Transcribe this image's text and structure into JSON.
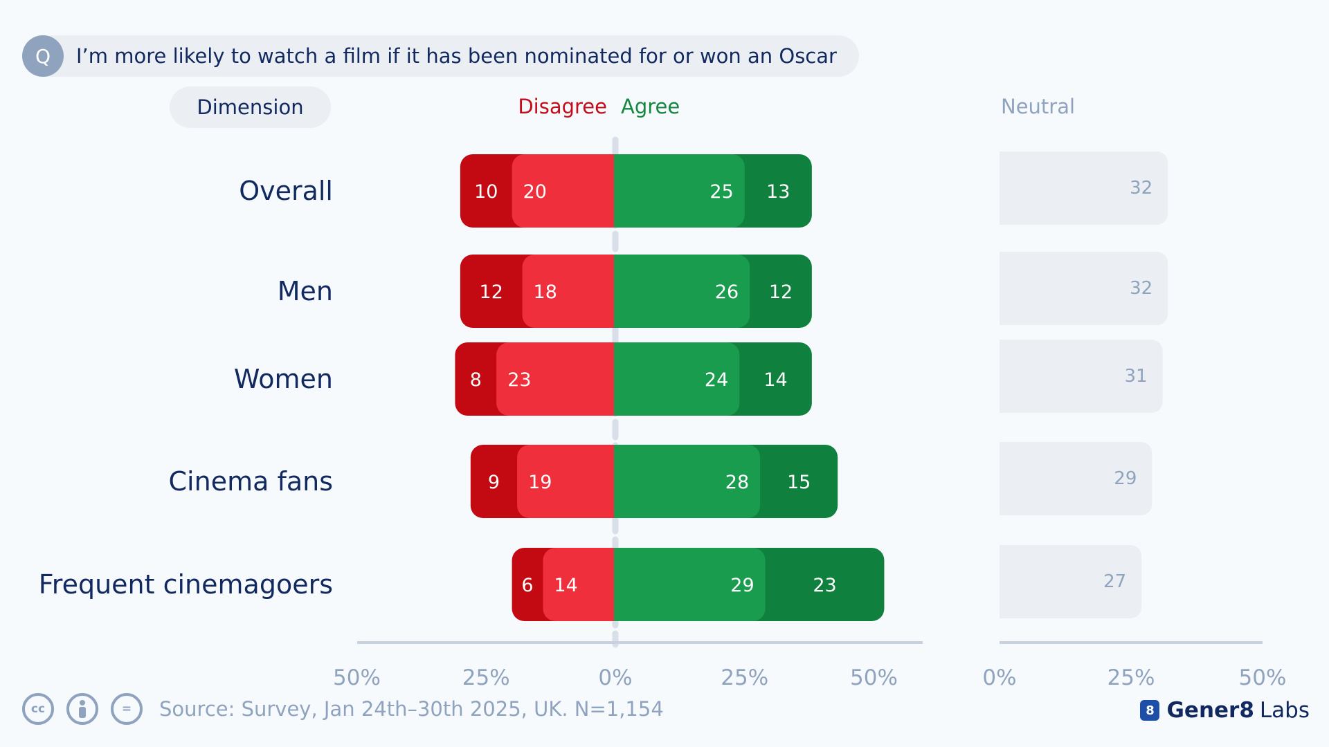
{
  "question": {
    "badge": "Q",
    "text": "I’m more likely to watch a film if it has been nominated for or won an Oscar"
  },
  "headers": {
    "dimension": "Dimension",
    "disagree": "Disagree",
    "agree": "Agree",
    "neutral": "Neutral"
  },
  "colors": {
    "strongly_disagree": "#c30a12",
    "disagree": "#ef2f3b",
    "agree": "#1a9c4f",
    "strongly_agree": "#0f803e",
    "neutral": "#ebeef3",
    "text_dark": "#12295f",
    "text_muted": "#8fa3be"
  },
  "chart_data": {
    "type": "bar",
    "orientation": "horizontal",
    "stacking": "diverging",
    "categories": [
      "Overall",
      "Men",
      "Women",
      "Cinema fans",
      "Frequent cinemagoers"
    ],
    "series": [
      {
        "key": "strongly_disagree",
        "values": [
          10,
          12,
          8,
          9,
          6
        ]
      },
      {
        "key": "disagree",
        "values": [
          20,
          18,
          23,
          19,
          14
        ]
      },
      {
        "key": "agree",
        "values": [
          25,
          26,
          24,
          28,
          29
        ]
      },
      {
        "key": "strongly_agree",
        "values": [
          13,
          12,
          14,
          15,
          23
        ]
      },
      {
        "key": "neutral",
        "values": [
          32,
          32,
          31,
          29,
          27
        ]
      }
    ],
    "main_axis": {
      "range": [
        -50,
        50
      ],
      "tick_values": [
        -50,
        -25,
        0,
        25,
        50
      ],
      "tick_labels": [
        "50%",
        "25%",
        "0%",
        "25%",
        "50%"
      ]
    },
    "neutral_axis": {
      "range": [
        0,
        50
      ],
      "tick_values": [
        0,
        25,
        50
      ],
      "tick_labels": [
        "0%",
        "25%",
        "50%"
      ]
    },
    "grid": false
  },
  "footer": {
    "license_icons": [
      "cc-icon",
      "attribution-icon",
      "no-derivatives-icon"
    ],
    "license_labels": [
      "cc",
      "=",
      "="
    ],
    "source": "Source: Survey, Jan 24th–30th 2025, UK. N=1,154",
    "brand_icon": "8",
    "brand_name": "Gener8",
    "brand_suffix": "Labs"
  }
}
